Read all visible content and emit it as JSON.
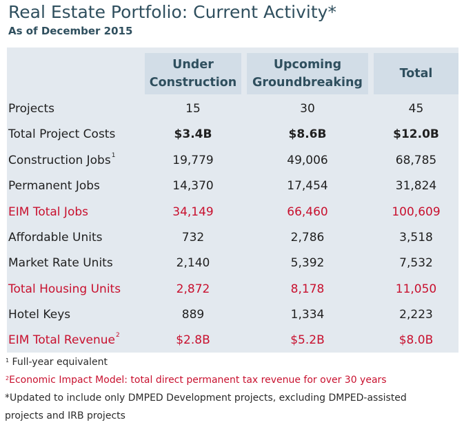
{
  "header": {
    "title": "Real Estate Portfolio: Current Activity*",
    "subtitle": "As of December 2015"
  },
  "table": {
    "columns": [
      {
        "line1": "Under",
        "line2": "Construction"
      },
      {
        "line1": "Upcoming",
        "line2": "Groundbreaking"
      },
      {
        "line1": "Total",
        "line2": ""
      }
    ],
    "rows": [
      {
        "label": "Projects",
        "sup": "",
        "values": [
          "15",
          "30",
          "45"
        ],
        "style": "normal"
      },
      {
        "label": "Total Project Costs",
        "sup": "",
        "values": [
          "$3.4B",
          "$8.6B",
          "$12.0B"
        ],
        "style": "bold"
      },
      {
        "label": "Construction Jobs",
        "sup": "1",
        "values": [
          "19,779",
          "49,006",
          "68,785"
        ],
        "style": "normal"
      },
      {
        "label": "Permanent Jobs",
        "sup": "",
        "values": [
          "14,370",
          "17,454",
          "31,824"
        ],
        "style": "normal"
      },
      {
        "label": "EIM Total  Jobs",
        "sup": "",
        "values": [
          "34,149",
          "66,460",
          "100,609"
        ],
        "style": "red"
      },
      {
        "label": "Affordable Units",
        "sup": "",
        "values": [
          "732",
          "2,786",
          "3,518"
        ],
        "style": "normal"
      },
      {
        "label": "Market Rate Units",
        "sup": "",
        "values": [
          "2,140",
          "5,392",
          "7,532"
        ],
        "style": "normal"
      },
      {
        "label": "Total Housing Units",
        "sup": "",
        "values": [
          "2,872",
          "8,178",
          "11,050"
        ],
        "style": "red"
      },
      {
        "label": "Hotel Keys",
        "sup": "",
        "values": [
          "889",
          "1,334",
          "2,223"
        ],
        "style": "normal"
      },
      {
        "label": "EIM Total Revenue",
        "sup": "2",
        "values": [
          "$2.8B",
          "$5.2B",
          "$8.0B"
        ],
        "style": "red"
      }
    ]
  },
  "footnotes": {
    "fn1_mark": "1",
    "fn1_text": "Full-year equivalent",
    "fn2_mark": "2",
    "fn2_text": "Economic Impact Model: total direct permanent tax revenue for over 30 years",
    "fn3_line1": "*Updated to include only DMPED Development projects, excluding DMPED-assisted",
    "fn3_line2": "projects and IRB projects"
  },
  "colors": {
    "title": "#2f4f5e",
    "panel": "#e3e9ef",
    "header_band": "#d2dde7",
    "accent_red": "#c8102e"
  }
}
